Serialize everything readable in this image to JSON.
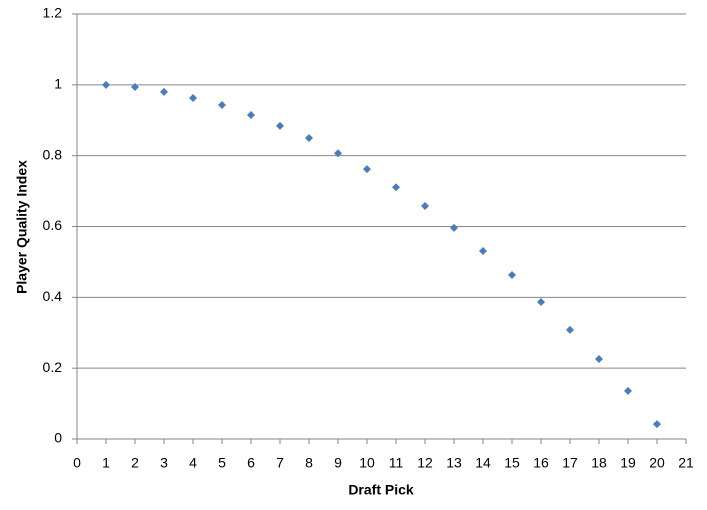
{
  "chart_data": {
    "type": "scatter",
    "x_label": "Draft Pick",
    "y_label": "Player Quality Index",
    "x": [
      1,
      2,
      3,
      4,
      5,
      6,
      7,
      8,
      9,
      10,
      11,
      12,
      13,
      14,
      15,
      16,
      17,
      18,
      19,
      20
    ],
    "values": [
      1.0,
      0.994,
      0.98,
      0.963,
      0.943,
      0.915,
      0.884,
      0.85,
      0.807,
      0.762,
      0.711,
      0.658,
      0.596,
      0.531,
      0.463,
      0.387,
      0.308,
      0.226,
      0.136,
      0.042
    ],
    "color": "#4a7ebb",
    "xlim": [
      0,
      21
    ],
    "xticks": [
      0,
      1,
      2,
      3,
      4,
      5,
      6,
      7,
      8,
      9,
      10,
      11,
      12,
      13,
      14,
      15,
      16,
      17,
      18,
      19,
      20,
      21
    ],
    "ylim": [
      0,
      1.2
    ],
    "yticks": [
      0,
      0.2,
      0.4,
      0.6,
      0.8,
      1,
      1.2
    ],
    "grid": true
  }
}
